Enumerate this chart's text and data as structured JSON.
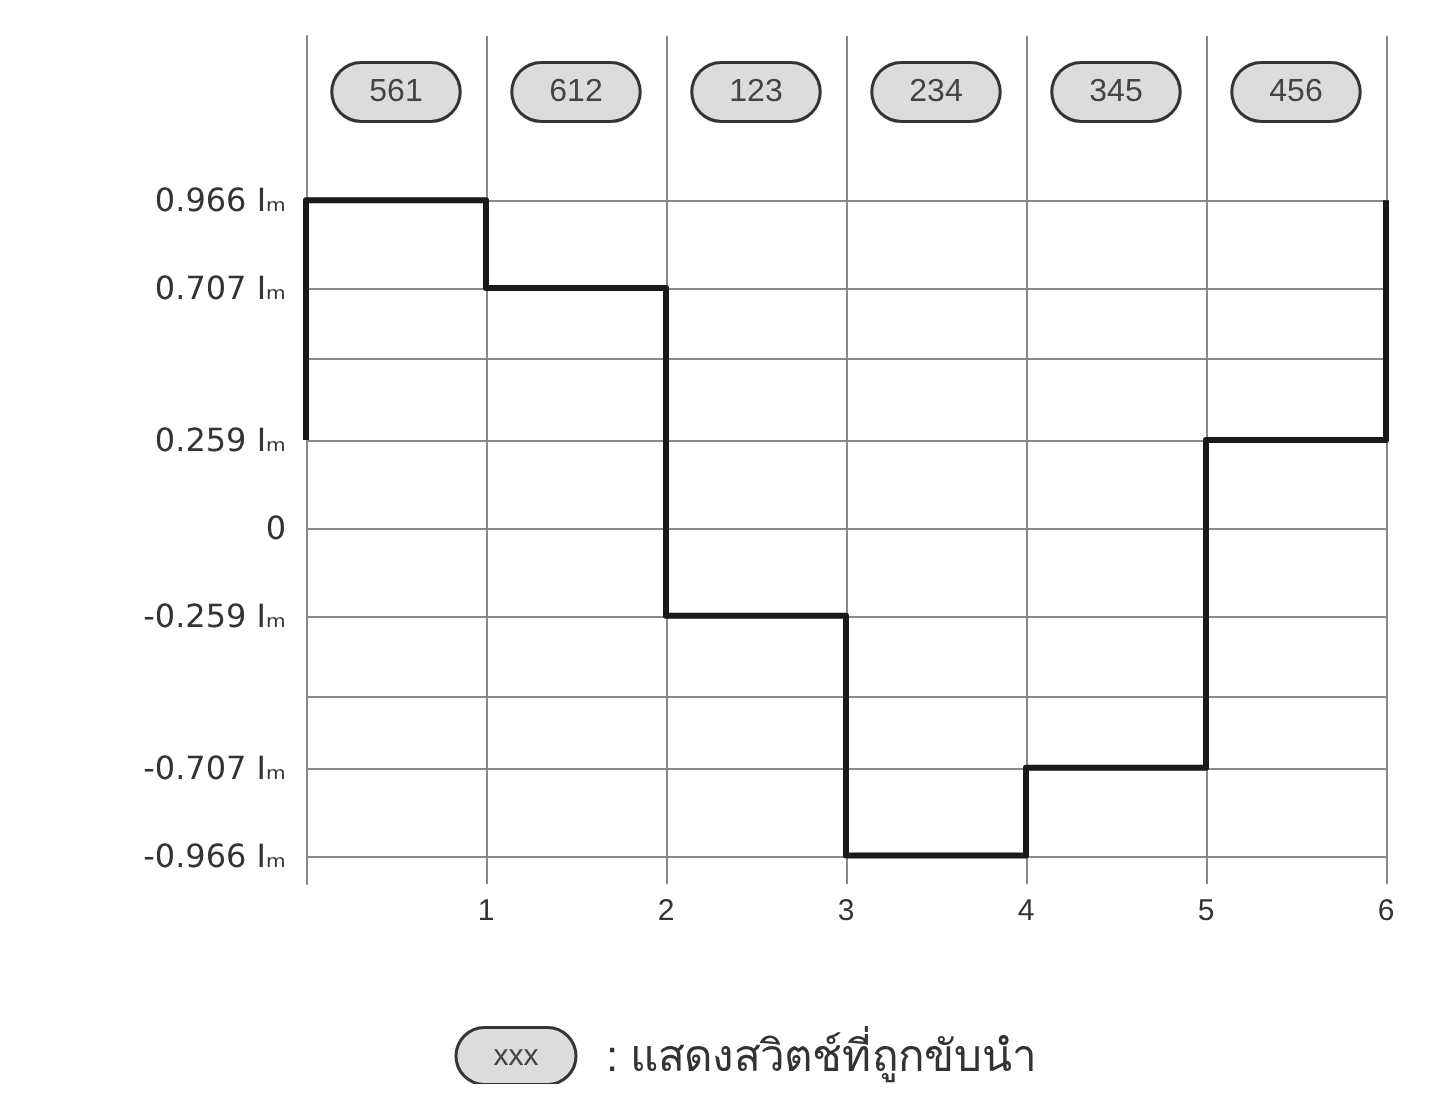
{
  "chart_data": {
    "type": "line",
    "x": [
      0,
      0,
      1,
      1,
      2,
      2,
      3,
      3,
      4,
      4,
      5,
      5,
      6,
      6
    ],
    "series": [
      {
        "color": "#1a1a1a",
        "values": [
          0.259,
          0.966,
          0.966,
          0.707,
          0.707,
          -0.259,
          -0.259,
          -0.966,
          -0.966,
          -0.707,
          -0.707,
          0.259,
          0.259,
          0.966
        ]
      }
    ],
    "xlim": [
      0,
      6
    ],
    "xticks": [
      {
        "value": 0,
        "label": null
      },
      1,
      2,
      3,
      4,
      5,
      6
    ],
    "ylim": [
      -1.05,
      1.45
    ],
    "yticks": [
      {
        "value": 0.966,
        "label": "0.966 Iₘ"
      },
      {
        "value": 0.707,
        "label": "0.707 Iₘ"
      },
      {
        "value": 0.5,
        "label": null
      },
      {
        "value": 0.259,
        "label": "0.259 Iₘ"
      },
      0,
      {
        "value": -0.259,
        "label": "-0.259 Iₘ"
      },
      {
        "value": -0.5,
        "label": null
      },
      {
        "value": -0.707,
        "label": "-0.707 Iₘ"
      },
      {
        "value": -0.966,
        "label": "-0.966 Iₘ"
      }
    ],
    "grid": true,
    "marker": "none",
    "annotations": [
      "561",
      "612",
      "123",
      "234",
      "345",
      "456",
      "xxx",
      ": แสดงสวิตช์ที่ถูกขับนำ"
    ]
  }
}
